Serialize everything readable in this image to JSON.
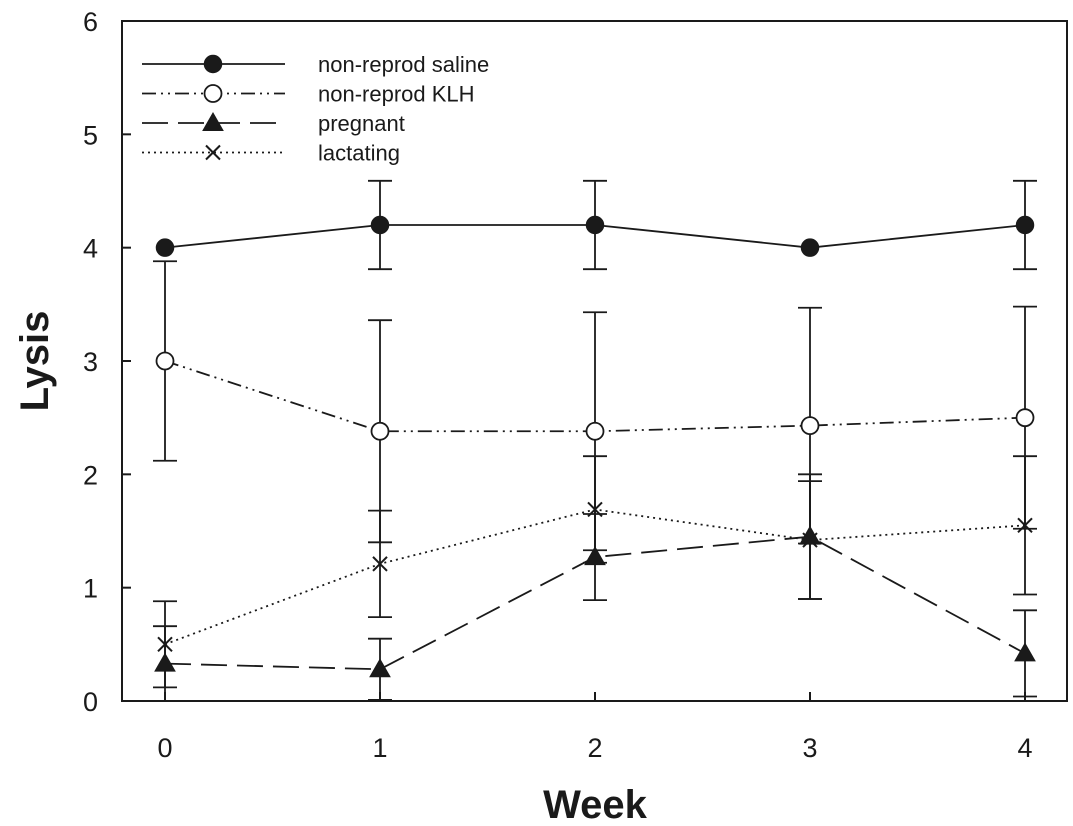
{
  "chart_data": {
    "type": "line",
    "title": "",
    "xlabel": "Week",
    "ylabel": "Lysis",
    "x": [
      0,
      1,
      2,
      3,
      4
    ],
    "x_ticks": [
      "0",
      "1",
      "2",
      "3",
      "4"
    ],
    "y_ticks": [
      "0",
      "1",
      "2",
      "3",
      "4",
      "5",
      "6"
    ],
    "xlim": [
      -0.2,
      4.2
    ],
    "ylim": [
      0,
      6
    ],
    "grid": false,
    "legend_position": "top-left",
    "series": [
      {
        "name": "non-reprod saline",
        "line_style": "solid",
        "marker": "filled-circle",
        "values": [
          4.0,
          4.2,
          4.2,
          4.0,
          4.2
        ],
        "error": [
          0.0,
          0.39,
          0.39,
          0.0,
          0.39
        ]
      },
      {
        "name": "non-reprod KLH",
        "line_style": "dash-dot-dot",
        "marker": "open-circle",
        "values": [
          3.0,
          2.38,
          2.38,
          2.43,
          2.5
        ],
        "error": [
          0.88,
          0.98,
          1.05,
          1.04,
          0.98
        ]
      },
      {
        "name": "pregnant",
        "line_style": "long-dash",
        "marker": "filled-triangle",
        "values": [
          0.33,
          0.28,
          1.27,
          1.45,
          0.42
        ],
        "error": [
          0.33,
          0.27,
          0.38,
          0.55,
          0.38
        ]
      },
      {
        "name": "lactating",
        "line_style": "dotted",
        "marker": "x",
        "values": [
          0.5,
          1.21,
          1.69,
          1.42,
          1.55
        ],
        "error": [
          0.38,
          0.47,
          0.47,
          0.52,
          0.61
        ]
      }
    ]
  }
}
